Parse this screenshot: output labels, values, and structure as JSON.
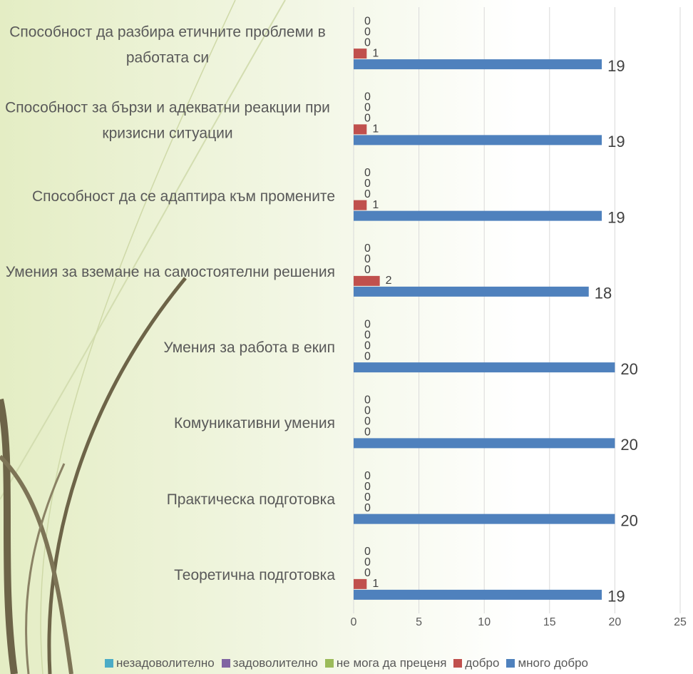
{
  "chart_data": {
    "type": "bar",
    "orientation": "horizontal",
    "categories": [
      "Способност да разбира етичните проблеми в работата си",
      "Способност за бързи и адекватни реакции при кризисни ситуации",
      "Способност да се адаптира към промените",
      "Умения за вземане на самостоятелни решения",
      "Умения за работа в екип",
      "Комуникативни умения",
      "Практическа подготовка",
      "Теоретична подготовка"
    ],
    "series": [
      {
        "name": "незадоволително",
        "color": "#4bacc6",
        "values": [
          0,
          0,
          0,
          0,
          0,
          0,
          0,
          0
        ]
      },
      {
        "name": "задоволително",
        "color": "#8064a2",
        "values": [
          0,
          0,
          0,
          0,
          0,
          0,
          0,
          0
        ]
      },
      {
        "name": "не мога да преценя",
        "color": "#9bbb59",
        "values": [
          0,
          0,
          0,
          0,
          0,
          0,
          0,
          0
        ]
      },
      {
        "name": "добро",
        "color": "#c0504d",
        "values": [
          1,
          1,
          1,
          2,
          0,
          0,
          0,
          1
        ]
      },
      {
        "name": "много добро",
        "color": "#4f81bd",
        "values": [
          19,
          19,
          19,
          18,
          20,
          20,
          20,
          19
        ]
      }
    ],
    "xlim": [
      0,
      25
    ],
    "xticks": [
      0,
      5,
      10,
      15,
      20,
      25
    ],
    "grid": true,
    "legend": "bottom"
  }
}
